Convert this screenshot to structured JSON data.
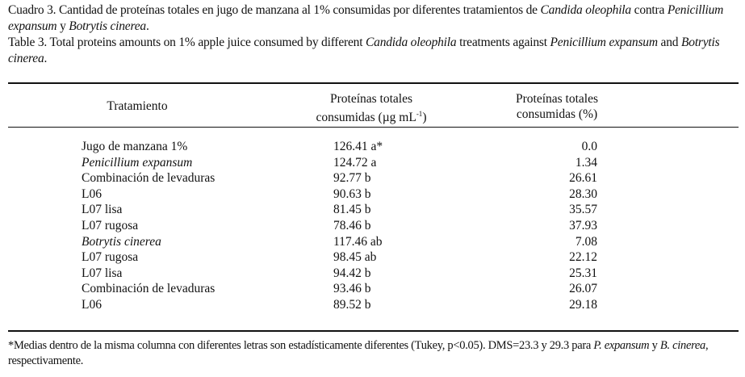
{
  "caption": {
    "es": {
      "prefix": "Cuadro 3. Cantidad de proteínas totales en jugo de manzana al 1% consumidas por diferentes tratamientos de ",
      "species": "Candida oleophila",
      "mid": " contra ",
      "pathogen1": "Penicillium expansum",
      "and": " y ",
      "pathogen2": "Botrytis cinerea",
      "end": "."
    },
    "en": {
      "prefix": "Table 3. Total proteins amounts on 1% apple juice consumed by different ",
      "species": "Candida oleophila",
      "mid": " treatments against ",
      "pathogen1": "Penicillium expansum",
      "and": " and ",
      "pathogen2": "Botrytis cinerea",
      "end": "."
    }
  },
  "table": {
    "headers": {
      "treatment": "Tratamiento",
      "ug_line1": "Proteínas totales",
      "ug_line2": "consumidas (µg mL",
      "ug_sup": "-1",
      "ug_close": ")",
      "pct_line1": "Proteínas totales",
      "pct_line2": "consumidas (%)"
    },
    "rows": [
      {
        "treatment": "Jugo de manzana 1%",
        "italic": false,
        "ug": "126.41 a*",
        "pct": "0.0"
      },
      {
        "treatment": "Penicillium expansum",
        "italic": true,
        "ug": "124.72 a",
        "pct": "1.34"
      },
      {
        "treatment": "Combinación de levaduras",
        "italic": false,
        "ug": "92.77 b",
        "pct": "26.61"
      },
      {
        "treatment": "L06",
        "italic": false,
        "ug": "90.63 b",
        "pct": "28.30"
      },
      {
        "treatment": "L07 lisa",
        "italic": false,
        "ug": "81.45 b",
        "pct": "35.57"
      },
      {
        "treatment": "L07 rugosa",
        "italic": false,
        "ug": "78.46 b",
        "pct": "37.93"
      },
      {
        "treatment": "Botrytis cinerea",
        "italic": true,
        "ug": "117.46 ab",
        "pct": "7.08"
      },
      {
        "treatment": "L07 rugosa",
        "italic": false,
        "ug": "98.45 ab",
        "pct": "22.12"
      },
      {
        "treatment": "L07 lisa",
        "italic": false,
        "ug": "94.42 b",
        "pct": "25.31"
      },
      {
        "treatment": "Combinación de levaduras",
        "italic": false,
        "ug": "93.46 b",
        "pct": "26.07"
      },
      {
        "treatment": "L06",
        "italic": false,
        "ug": "89.52 b",
        "pct": "29.18"
      }
    ]
  },
  "footnote": {
    "text": "*Medias dentro de la misma columna con diferentes letras son estadísticamente diferentes (Tukey, p<0.05). DMS=23.3 y 29.3 para ",
    "sp1": "P. expansum",
    "and": " y ",
    "sp2": "B. cinerea",
    "end": ", respectivamente."
  }
}
